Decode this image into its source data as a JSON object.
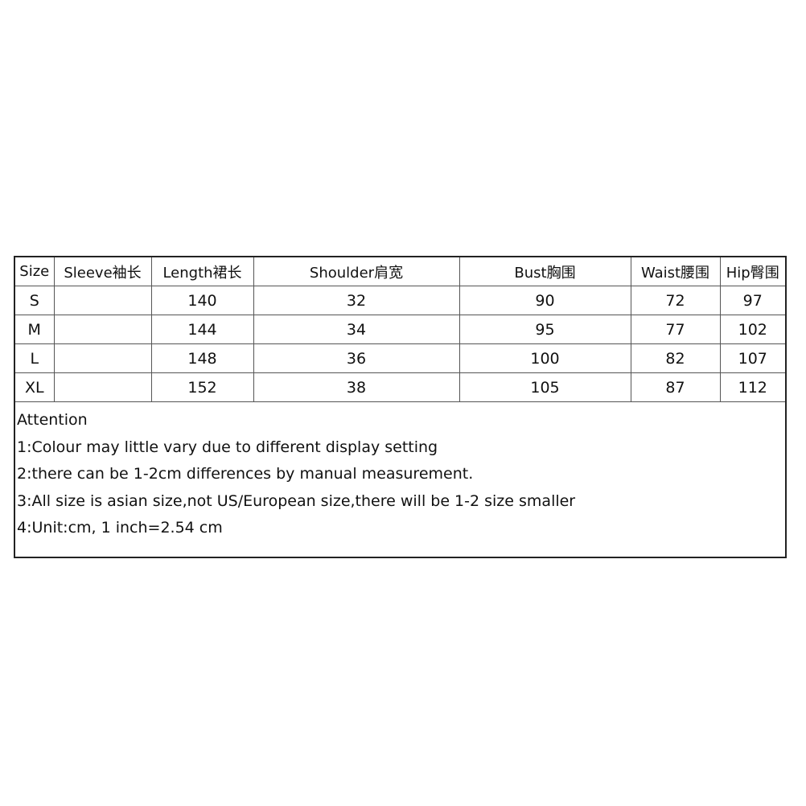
{
  "table": {
    "headers": [
      "Size",
      "Sleeve袖长",
      "Length裙长",
      "Shoulder肩宽",
      "Bust胸围",
      "Waist腰围",
      "Hip臀围"
    ],
    "rows": [
      [
        "S",
        "",
        "140",
        "32",
        "90",
        "72",
        "97"
      ],
      [
        "M",
        "",
        "144",
        "34",
        "95",
        "77",
        "102"
      ],
      [
        "L",
        "",
        "148",
        "36",
        "100",
        "82",
        "107"
      ],
      [
        "XL",
        "",
        "152",
        "38",
        "105",
        "87",
        "112"
      ]
    ]
  },
  "notes": {
    "title": "Attention",
    "items": [
      "1:Colour may little vary due to different display setting",
      "2:there can be 1-2cm differences by manual measurement.",
      "3:All size is asian size,not US/European size,there will be 1-2 size smaller",
      "4:Unit:cm, 1 inch=2.54 cm"
    ]
  }
}
